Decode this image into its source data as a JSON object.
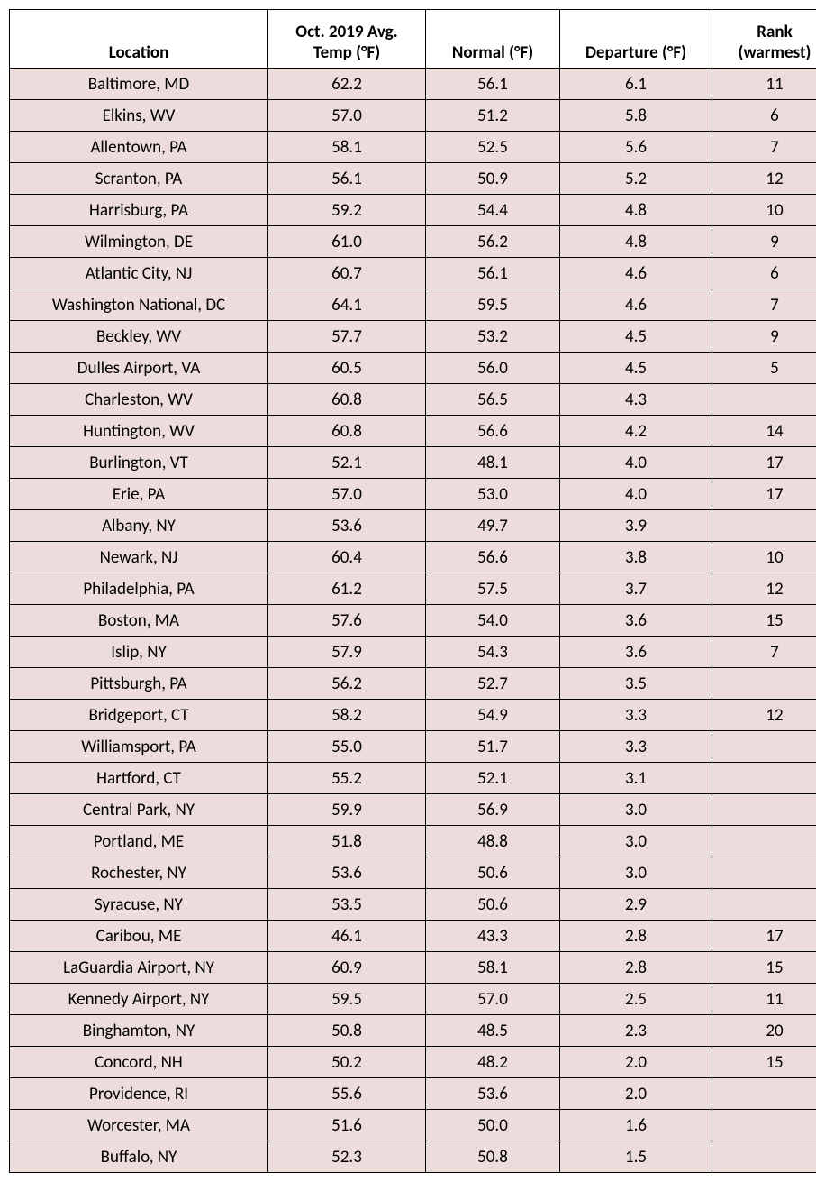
{
  "table": {
    "type": "table",
    "columns": [
      {
        "label": "Location",
        "class": "col-location"
      },
      {
        "label": "Oct. 2019 Avg.\nTemp (°F)",
        "class": "col-avg"
      },
      {
        "label": "Normal (°F)",
        "class": "col-normal"
      },
      {
        "label": "Departure (°F)",
        "class": "col-departure"
      },
      {
        "label": "Rank\n(warmest)",
        "class": "col-rank"
      }
    ],
    "rows": [
      [
        "Baltimore, MD",
        "62.2",
        "56.1",
        "6.1",
        "11"
      ],
      [
        "Elkins, WV",
        "57.0",
        "51.2",
        "5.8",
        "6"
      ],
      [
        "Allentown, PA",
        "58.1",
        "52.5",
        "5.6",
        "7"
      ],
      [
        "Scranton, PA",
        "56.1",
        "50.9",
        "5.2",
        "12"
      ],
      [
        "Harrisburg, PA",
        "59.2",
        "54.4",
        "4.8",
        "10"
      ],
      [
        "Wilmington, DE",
        "61.0",
        "56.2",
        "4.8",
        "9"
      ],
      [
        "Atlantic City, NJ",
        "60.7",
        "56.1",
        "4.6",
        "6"
      ],
      [
        "Washington National, DC",
        "64.1",
        "59.5",
        "4.6",
        "7"
      ],
      [
        "Beckley, WV",
        "57.7",
        "53.2",
        "4.5",
        "9"
      ],
      [
        "Dulles Airport, VA",
        "60.5",
        "56.0",
        "4.5",
        "5"
      ],
      [
        "Charleston, WV",
        "60.8",
        "56.5",
        "4.3",
        ""
      ],
      [
        "Huntington, WV",
        "60.8",
        "56.6",
        "4.2",
        "14"
      ],
      [
        "Burlington, VT",
        "52.1",
        "48.1",
        "4.0",
        "17"
      ],
      [
        "Erie, PA",
        "57.0",
        "53.0",
        "4.0",
        "17"
      ],
      [
        "Albany, NY",
        "53.6",
        "49.7",
        "3.9",
        ""
      ],
      [
        "Newark, NJ",
        "60.4",
        "56.6",
        "3.8",
        "10"
      ],
      [
        "Philadelphia, PA",
        "61.2",
        "57.5",
        "3.7",
        "12"
      ],
      [
        "Boston, MA",
        "57.6",
        "54.0",
        "3.6",
        "15"
      ],
      [
        "Islip, NY",
        "57.9",
        "54.3",
        "3.6",
        "7"
      ],
      [
        "Pittsburgh, PA",
        "56.2",
        "52.7",
        "3.5",
        ""
      ],
      [
        "Bridgeport, CT",
        "58.2",
        "54.9",
        "3.3",
        "12"
      ],
      [
        "Williamsport, PA",
        "55.0",
        "51.7",
        "3.3",
        ""
      ],
      [
        "Hartford, CT",
        "55.2",
        "52.1",
        "3.1",
        ""
      ],
      [
        "Central Park, NY",
        "59.9",
        "56.9",
        "3.0",
        ""
      ],
      [
        "Portland, ME",
        "51.8",
        "48.8",
        "3.0",
        ""
      ],
      [
        "Rochester, NY",
        "53.6",
        "50.6",
        "3.0",
        ""
      ],
      [
        "Syracuse, NY",
        "53.5",
        "50.6",
        "2.9",
        ""
      ],
      [
        "Caribou, ME",
        "46.1",
        "43.3",
        "2.8",
        "17"
      ],
      [
        "LaGuardia Airport, NY",
        "60.9",
        "58.1",
        "2.8",
        "15"
      ],
      [
        "Kennedy Airport, NY",
        "59.5",
        "57.0",
        "2.5",
        "11"
      ],
      [
        "Binghamton, NY",
        "50.8",
        "48.5",
        "2.3",
        "20"
      ],
      [
        "Concord, NH",
        "50.2",
        "48.2",
        "2.0",
        "15"
      ],
      [
        "Providence, RI",
        "55.6",
        "53.6",
        "2.0",
        ""
      ],
      [
        "Worcester, MA",
        "51.6",
        "50.0",
        "1.6",
        ""
      ],
      [
        "Buffalo, NY",
        "52.3",
        "50.8",
        "1.5",
        ""
      ]
    ],
    "header_bg": "#ffffff",
    "row_bg": "#ecdddc",
    "border_color": "#000000",
    "font_family": "Calibri, Arial, sans-serif",
    "fontsize": 19
  }
}
